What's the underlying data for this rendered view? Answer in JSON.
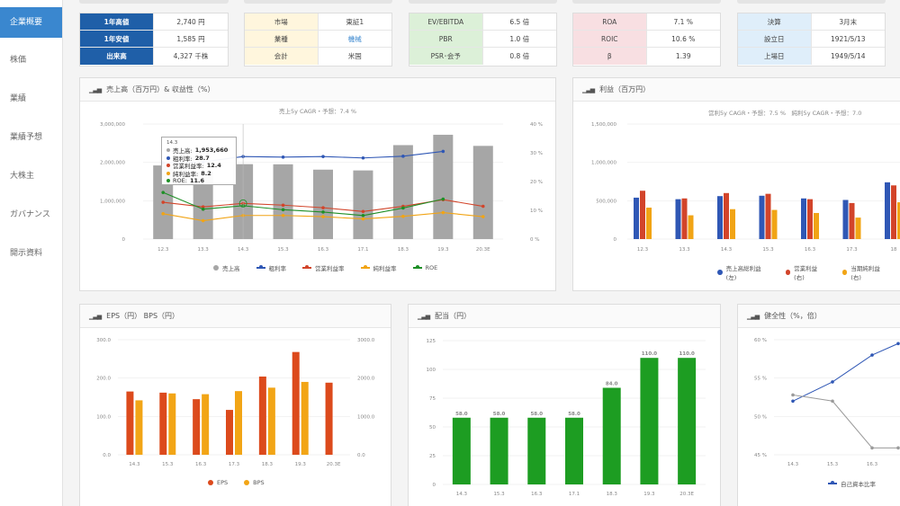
{
  "sidebar": {
    "items": [
      {
        "label": "企業概要",
        "active": true
      },
      {
        "label": "株価"
      },
      {
        "label": "業績"
      },
      {
        "label": "業績予想"
      },
      {
        "label": "大株主"
      },
      {
        "label": "ガバナンス"
      },
      {
        "label": "開示資料"
      }
    ]
  },
  "info_tables": [
    {
      "style": "blue",
      "rows": [
        {
          "k": "1年高値",
          "v": "2,740 円"
        },
        {
          "k": "1年安値",
          "v": "1,585 円"
        },
        {
          "k": "出来高",
          "v": "4,327 千株"
        }
      ]
    },
    {
      "style": "yellow",
      "rows": [
        {
          "k": "市場",
          "v": "東証1"
        },
        {
          "k": "業種",
          "v": "機械",
          "link": true
        },
        {
          "k": "会計",
          "v": "米国"
        }
      ]
    },
    {
      "style": "green",
      "rows": [
        {
          "k": "EV/EBITDA",
          "v": "6.5 倍"
        },
        {
          "k": "PBR",
          "v": "1.0 倍"
        },
        {
          "k": "PSR･会予",
          "v": "0.8 倍"
        }
      ]
    },
    {
      "style": "pink",
      "rows": [
        {
          "k": "ROA",
          "v": "7.1 %"
        },
        {
          "k": "ROIC",
          "v": "10.6 %"
        },
        {
          "k": "β",
          "v": "1.39"
        }
      ]
    },
    {
      "style": "lblue",
      "rows": [
        {
          "k": "決算",
          "v": "3月末"
        },
        {
          "k": "設立日",
          "v": "1921/5/13"
        },
        {
          "k": "上場日",
          "v": "1949/5/14"
        }
      ]
    }
  ],
  "colors": {
    "sales_bar": "#a6a6a6",
    "gross_margin": "#2f57b5",
    "op_margin": "#d2442a",
    "net_margin": "#f1a415",
    "roe": "#1e8f26",
    "eps": "#dc4a1c",
    "bps": "#f2a516",
    "dividend": "#1d9d22"
  },
  "panels": {
    "sales": {
      "title": "売上高（百万円）& 収益性（%）",
      "icon": "bar-chart-icon"
    },
    "profit": {
      "title": "利益（百万円）",
      "icon": "bar-chart-icon"
    },
    "eps": {
      "title": "EPS（円） BPS（円）",
      "icon": "bar-chart-icon"
    },
    "dividend": {
      "title": "配当（円）",
      "icon": "bar-chart-icon"
    },
    "health": {
      "title": "健全性（%，倍）",
      "icon": "bar-chart-icon"
    }
  },
  "tooltip": {
    "header": "14.3",
    "rows": [
      {
        "label": "売上高:",
        "value": "1,953,660",
        "color": "#a6a6a6"
      },
      {
        "label": "粗利率:",
        "value": "28.7",
        "color": "#2f57b5"
      },
      {
        "label": "営業利益率:",
        "value": "12.4",
        "color": "#d2442a"
      },
      {
        "label": "純利益率:",
        "value": "8.2",
        "color": "#f1a415"
      },
      {
        "label": "ROE:",
        "value": "11.6",
        "color": "#1e8f26"
      }
    ]
  },
  "chart_data": [
    {
      "type": "bar",
      "subtitle": "売上5y CAGR・予想：7.4 %",
      "categories": [
        "12.3",
        "13.3",
        "14.3",
        "15.3",
        "16.3",
        "17.1",
        "18.3",
        "19.3",
        "20.3E"
      ],
      "y_left_ticks": [
        "3,000,000",
        "2,000,000",
        "1,000,000",
        "0"
      ],
      "y_right_ticks": [
        "40 %",
        "30 %",
        "20 %",
        "10 %",
        "0 %"
      ],
      "ylim_left": [
        0,
        3000000
      ],
      "ylim_right": [
        0,
        40
      ],
      "series": [
        {
          "name": "売上高",
          "kind": "bar",
          "values": [
            1920000,
            1760000,
            1953660,
            1950000,
            1810000,
            1790000,
            2450000,
            2720000,
            2430000
          ]
        },
        {
          "name": "粗利率",
          "kind": "line",
          "values": [
            26.5,
            26.8,
            28.7,
            28.5,
            28.7,
            28.2,
            28.8,
            30.5,
            null
          ]
        },
        {
          "name": "営業利益率",
          "kind": "line",
          "values": [
            12.8,
            11.2,
            12.4,
            11.8,
            10.9,
            9.6,
            11.4,
            13.7,
            11.4
          ]
        },
        {
          "name": "純利益率",
          "kind": "line",
          "values": [
            8.8,
            6.4,
            8.2,
            8.2,
            7.8,
            7.0,
            7.9,
            9.2,
            7.8
          ]
        },
        {
          "name": "ROE",
          "kind": "line",
          "values": [
            16.2,
            10.4,
            11.6,
            10.2,
            9.4,
            8.2,
            10.8,
            13.9,
            null
          ]
        }
      ],
      "legend": [
        "売上高",
        "粗利率",
        "営業利益率",
        "純利益率",
        "ROE"
      ]
    },
    {
      "type": "bar",
      "subtitle": "営利5y CAGR・予想：7.5 %　純利5y CAGR・予想：7.0",
      "categories": [
        "12.3",
        "13.3",
        "14.3",
        "15.3",
        "16.3",
        "17.3",
        "18"
      ],
      "y_ticks": [
        "1,500,000",
        "1,000,000",
        "500,000",
        "0"
      ],
      "ylim": [
        0,
        1500000
      ],
      "series": [
        {
          "name": "売上高総利益(左)",
          "values": [
            540000,
            520000,
            560000,
            565000,
            530000,
            510000,
            740000
          ]
        },
        {
          "name": "営業利益(右)",
          "values": [
            630000,
            530000,
            600000,
            590000,
            520000,
            470000,
            700000
          ]
        },
        {
          "name": "当期純利益(右)",
          "values": [
            410000,
            310000,
            390000,
            380000,
            340000,
            280000,
            480000
          ]
        }
      ],
      "legend": [
        "売上高総利益(左)",
        "営業利益(右)",
        "当期純利益(右)"
      ]
    },
    {
      "type": "bar",
      "categories": [
        "14.3",
        "15.3",
        "16.3",
        "17.3",
        "18.3",
        "19.3",
        "20.3E"
      ],
      "y_left_ticks": [
        "300.0",
        "200.0",
        "100.0",
        "0.0"
      ],
      "y_right_ticks": [
        "3000.0",
        "2000.0",
        "1000.0",
        "0.0"
      ],
      "ylim_left": [
        0,
        300
      ],
      "ylim_right": [
        0,
        3000
      ],
      "series": [
        {
          "name": "EPS",
          "values": [
            165,
            162,
            145,
            117,
            204,
            268,
            188
          ]
        },
        {
          "name": "BPS",
          "values": [
            1420,
            1600,
            1580,
            1660,
            1750,
            1900,
            null
          ]
        }
      ],
      "legend": [
        "EPS",
        "BPS"
      ]
    },
    {
      "type": "bar",
      "categories": [
        "14.3",
        "15.3",
        "16.3",
        "17.1",
        "18.3",
        "19.3",
        "20.3E"
      ],
      "y_ticks": [
        "125",
        "100",
        "75",
        "50",
        "25",
        "0"
      ],
      "ylim": [
        0,
        125
      ],
      "series": [
        {
          "name": "配当",
          "values": [
            58.0,
            58.0,
            58.0,
            58.0,
            84.0,
            110.0,
            110.0
          ]
        }
      ],
      "data_labels": [
        "58.0",
        "58.0",
        "58.0",
        "58.0",
        "84.0",
        "110.0",
        "110.0"
      ]
    },
    {
      "type": "line",
      "categories": [
        "14.3",
        "15.3",
        "16.3",
        "17.3"
      ],
      "y_ticks": [
        "60 %",
        "55 %",
        "50 %",
        "45 %"
      ],
      "ylim": [
        45,
        60
      ],
      "series": [
        {
          "name": "自己資本比率",
          "values": [
            52.0,
            54.5,
            58.0,
            59.5
          ]
        },
        {
          "name": "",
          "values": [
            52.8,
            52.0,
            45.9,
            45.9
          ]
        }
      ],
      "legend": [
        "自己資本比率"
      ]
    }
  ]
}
